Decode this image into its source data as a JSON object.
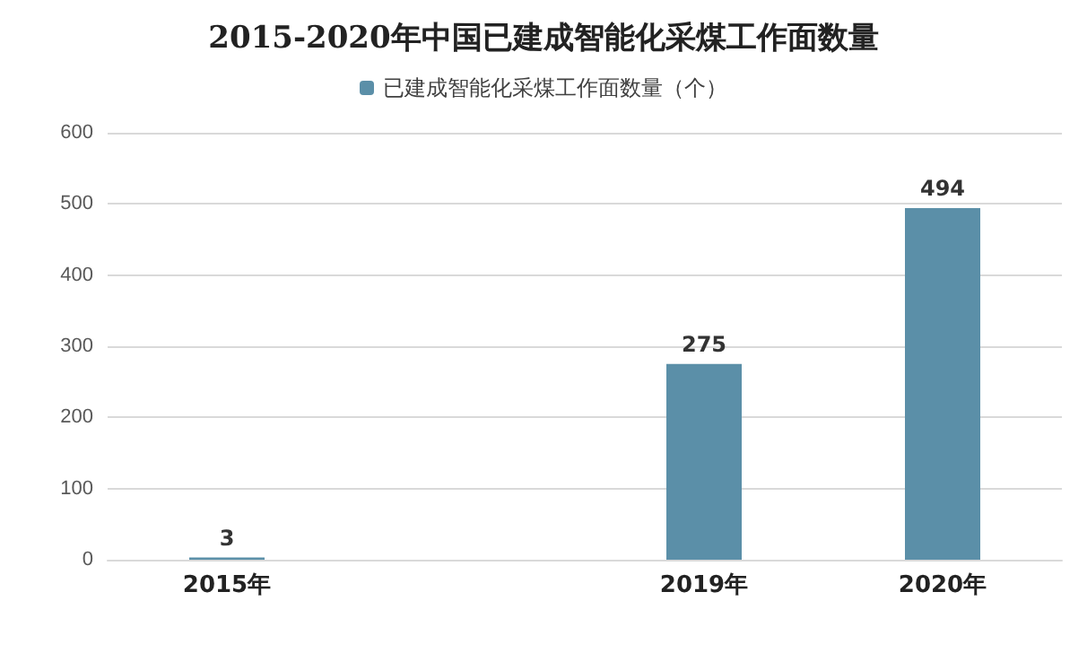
{
  "chart_data": {
    "type": "bar",
    "title": "2015-2020年中国已建成智能化采煤工作面数量",
    "categories": [
      "2015年",
      null,
      "2019年",
      "2020年"
    ],
    "series": [
      {
        "name": "已建成智能化采煤工作面数量（个）",
        "color": "#5b8fa8",
        "values": [
          3,
          null,
          275,
          494
        ]
      }
    ],
    "ylim": [
      0,
      600
    ],
    "yticks": [
      0,
      100,
      200,
      300,
      400,
      500,
      600
    ],
    "grid": "y",
    "legend": "top",
    "data_labels": true
  }
}
